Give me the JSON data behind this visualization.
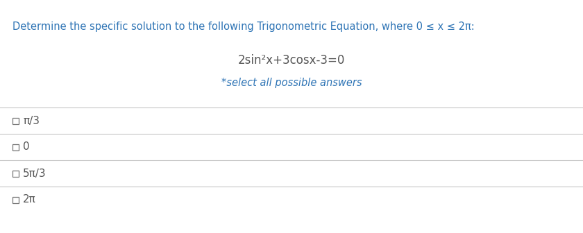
{
  "background_color": "#ffffff",
  "header_text": "Determine the specific solution to the following Trigonometric Equation, where 0 ≤ x ≤ 2π:",
  "header_color": "#2e74b5",
  "header_fontsize": 10.5,
  "equation": "2sin²x+3cosx-3=0",
  "equation_color": "#555555",
  "equation_fontsize": 12,
  "subtext": "*select all possible answers",
  "subtext_color": "#2e74b5",
  "subtext_fontsize": 10.5,
  "options": [
    "π/3",
    "0",
    "5π/3",
    "2π"
  ],
  "option_color": "#555555",
  "option_fontsize": 11,
  "divider_color": "#c8c8c8",
  "checkbox_color": "#777777",
  "checkbox_size": 9
}
